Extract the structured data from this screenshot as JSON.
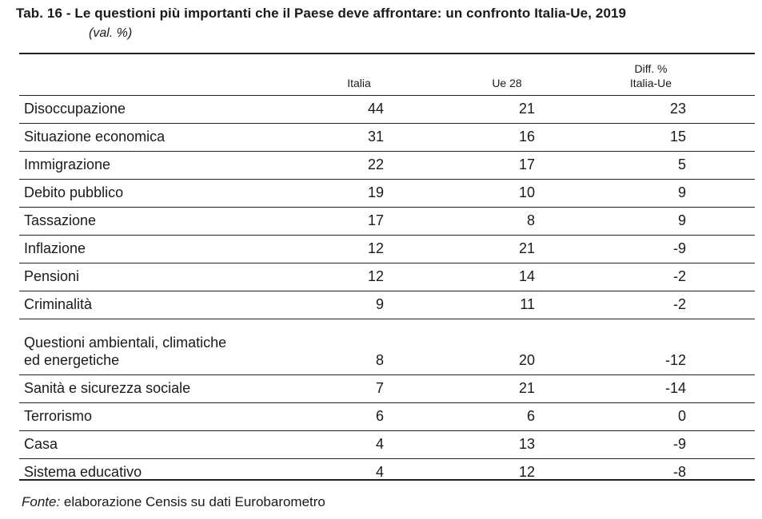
{
  "title": "Tab. 16 - Le questioni più importanti che il Paese deve affrontare: un confronto Italia-Ue, 2019",
  "subtitle": "(val. %)",
  "columns": {
    "italia": "Italia",
    "ue": "Ue 28",
    "diff_line1": "Diff. %",
    "diff_line2": "Italia-Ue"
  },
  "source": {
    "label": "Fonte:",
    "text": " elaborazione Censis su dati Eurobarometro"
  },
  "chart_data": {
    "type": "table",
    "title": "Tab. 16 - Le questioni più importanti che il Paese deve affrontare: un confronto Italia-Ue, 2019",
    "unit": "(val. %)",
    "headers": [
      "",
      "Italia",
      "Ue 28",
      "Diff. % Italia-Ue"
    ],
    "rows": [
      {
        "label": "Disoccupazione",
        "italia": "44",
        "ue": "21",
        "diff": "23"
      },
      {
        "label": "Situazione economica",
        "italia": "31",
        "ue": "16",
        "diff": "15"
      },
      {
        "label": "Immigrazione",
        "italia": "22",
        "ue": "17",
        "diff": "5"
      },
      {
        "label": "Debito pubblico",
        "italia": "19",
        "ue": "10",
        "diff": "9"
      },
      {
        "label": "Tassazione",
        "italia": "17",
        "ue": "8",
        "diff": "9"
      },
      {
        "label": "Inflazione",
        "italia": "12",
        "ue": "21",
        "diff": "-9"
      },
      {
        "label": "Pensioni",
        "italia": "12",
        "ue": "14",
        "diff": "-2"
      },
      {
        "label": "Criminalità",
        "italia": "9",
        "ue": "11",
        "diff": "-2"
      },
      {
        "label": "Questioni ambientali, climatiche",
        "label2": "ed energetiche",
        "italia": "8",
        "ue": "20",
        "diff": "-12"
      },
      {
        "label": "Sanità e sicurezza sociale",
        "italia": "7",
        "ue": "21",
        "diff": "-14"
      },
      {
        "label": "Terrorismo",
        "italia": "6",
        "ue": "6",
        "diff": "0"
      },
      {
        "label": "Casa",
        "italia": "4",
        "ue": "13",
        "diff": "-9"
      },
      {
        "label": "Sistema educativo",
        "italia": "4",
        "ue": "12",
        "diff": "-8"
      }
    ]
  }
}
